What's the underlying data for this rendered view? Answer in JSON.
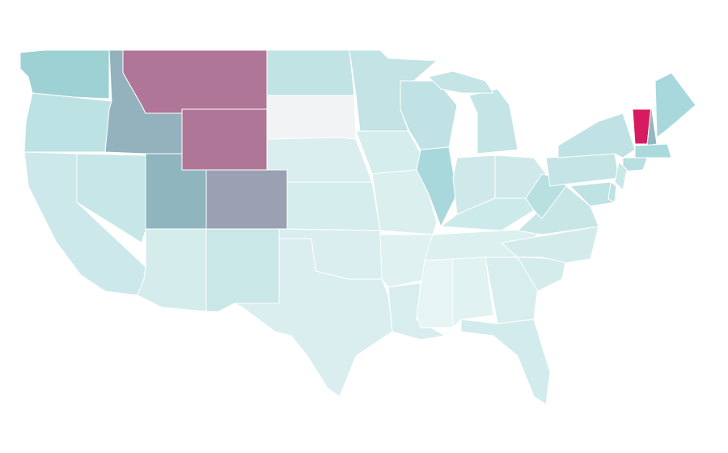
{
  "regions": [
    {
      "color": "#9dd1d4"
    },
    {
      "color": "#bde2e3"
    },
    {
      "color": "#cde8ea"
    },
    {
      "color": "#c7e6e7"
    },
    {
      "color": "#93b2bd"
    },
    {
      "color": "#b07697"
    },
    {
      "color": "#b07697"
    },
    {
      "color": "#8fb6bf"
    },
    {
      "color": "#9ca0b3"
    },
    {
      "color": "#d4ecec"
    },
    {
      "color": "#c9e7e7"
    },
    {
      "color": "#c2e3e4"
    },
    {
      "color": "#f1f3f4"
    },
    {
      "color": "#daeeef"
    },
    {
      "color": "#d6eded"
    },
    {
      "color": "#daeeef"
    },
    {
      "color": "#daeeef"
    },
    {
      "color": "#c3e3e5"
    },
    {
      "color": "#d6eded"
    },
    {
      "color": "#dbefef"
    },
    {
      "color": "#dff1f1"
    },
    {
      "color": "#d8eeee"
    },
    {
      "color": "#c0e2e4"
    },
    {
      "color": "#a8d8db"
    },
    {
      "color": "#c4e4e5"
    },
    {
      "color": "#c4e4e5"
    },
    {
      "color": "#cfe9ea"
    },
    {
      "color": "#cfe9ea"
    },
    {
      "color": "#cdeaea"
    },
    {
      "color": "#dcf0f0"
    },
    {
      "color": "#e6f4f4"
    },
    {
      "color": "#e0f2f2"
    },
    {
      "color": "#d8eeee"
    },
    {
      "color": "#d2ebec"
    },
    {
      "color": "#d4ecec"
    },
    {
      "color": "#d3ebeb"
    },
    {
      "color": "#c9e6e7"
    },
    {
      "color": "#b9e0e1"
    },
    {
      "color": "#c4e4e5"
    },
    {
      "color": "#c0e2e4"
    },
    {
      "color": "#bfe2e3"
    },
    {
      "color": "#d81b60"
    },
    {
      "color": "#93b7bf"
    },
    {
      "color": "#a8d8dc"
    },
    {
      "color": "#aadadd"
    },
    {
      "color": "#b8dfe1"
    },
    {
      "color": "#cbe8e8"
    },
    {
      "color": "#bfe2e3"
    }
  ]
}
